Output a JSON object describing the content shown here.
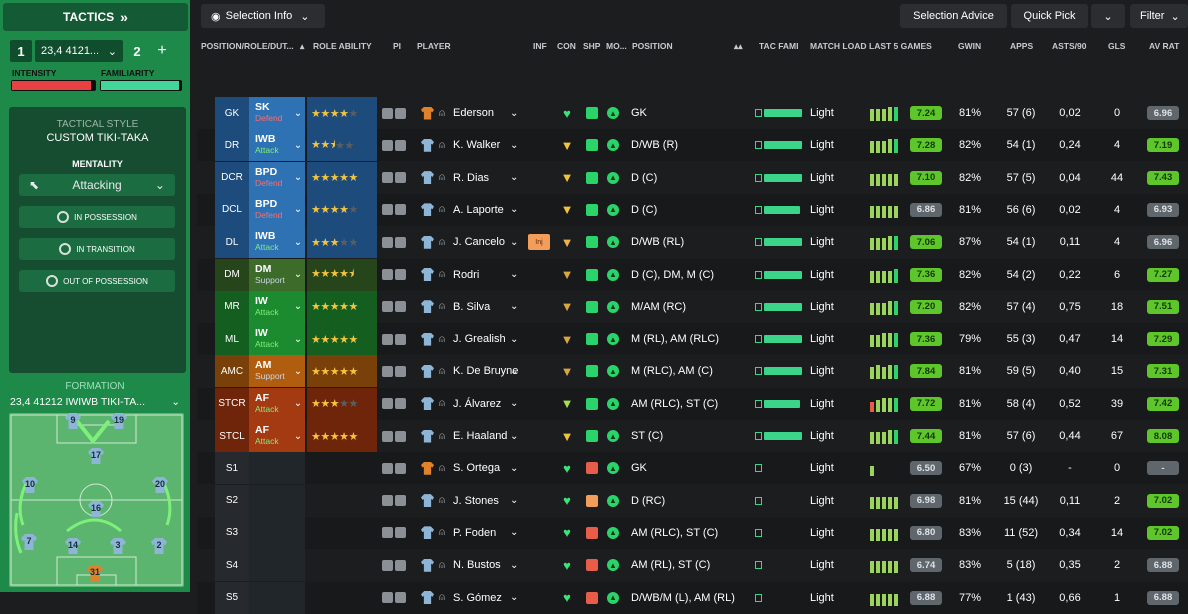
{
  "sidebar": {
    "header": "TACTICS",
    "tactic1_num": "1",
    "tactic1_name": "23,4 4121...",
    "tactic2_num": "2",
    "intensity_label": "INTENSITY",
    "intensity_value": 0.95,
    "familiarity_label": "FAMILIARITY",
    "familiarity_value": 0.97,
    "tactical_style_label": "TACTICAL STYLE",
    "tactical_style_value": "CUSTOM TIKI-TAKA",
    "mentality_label": "MENTALITY",
    "mentality_value": "Attacking",
    "in_possession": "IN POSSESSION",
    "in_transition": "IN TRANSITION",
    "out_of_possession": "OUT OF POSSESSION",
    "formation_label": "FORMATION",
    "formation_value": "23,4 41212 IWIWB TIKI-TA...",
    "pitch_numbers": [
      "9",
      "19",
      "17",
      "10",
      "20",
      "16",
      "7",
      "14",
      "3",
      "2",
      "31"
    ]
  },
  "topbar": {
    "selection_info": "Selection Info",
    "selection_advice": "Selection Advice",
    "quick_pick": "Quick Pick",
    "filter": "Filter"
  },
  "headers": {
    "position": "POSITION/ROLE/DUT...",
    "role_ability": "ROLE ABILITY",
    "pi": "PI",
    "player": "PLAYER",
    "inf": "INF",
    "con": "CON",
    "shp": "SHP",
    "mo": "MO...",
    "pos": "POSITION",
    "tac_fami": "TAC FAMI",
    "match_load": "MATCH LOAD",
    "last5": "LAST 5 GAMES",
    "gwin": "GWIN",
    "apps": "APPS",
    "asts": "ASTS/90",
    "gls": "GLS",
    "avrat": "AV RAT"
  },
  "colors": {
    "defend": "#2f72b4",
    "support": "#3d6b2a",
    "attack_green": "#1c8a2e",
    "attack_orange": "#b05d10",
    "attack_red": "#a43a12",
    "rating_green": "#5ec52a",
    "rating_grey": "#5f666c"
  },
  "rows": [
    {
      "slot": "GK",
      "role": "SK",
      "duty": "Defend",
      "stars": "★★★★",
      "empty": "★",
      "pname": "Ederson",
      "ppos": "GK",
      "inj": "",
      "load": "Light",
      "avr": "7.24",
      "gwin": "81%",
      "apps": "57 (6)",
      "asts": "0,02",
      "gls": "0",
      "avrat": "6.96"
    },
    {
      "slot": "DR",
      "role": "IWB",
      "duty": "Attack",
      "stars": "★★⯨",
      "empty": "★★",
      "pname": "K. Walker",
      "ppos": "D/WB (R)",
      "inj": "",
      "load": "Light",
      "avr": "7.28",
      "gwin": "82%",
      "apps": "54 (1)",
      "asts": "0,24",
      "gls": "4",
      "avrat": "7.19"
    },
    {
      "slot": "DCR",
      "role": "BPD",
      "duty": "Defend",
      "stars": "★★★★★",
      "empty": "",
      "pname": "R. Dias",
      "ppos": "D (C)",
      "inj": "",
      "load": "Light",
      "avr": "7.10",
      "gwin": "82%",
      "apps": "57 (5)",
      "asts": "0,04",
      "gls": "44",
      "avrat": "7.43"
    },
    {
      "slot": "DCL",
      "role": "BPD",
      "duty": "Defend",
      "stars": "★★★★",
      "empty": "★",
      "pname": "A. Laporte",
      "ppos": "D (C)",
      "inj": "",
      "load": "Light",
      "avr": "6.86",
      "gwin": "81%",
      "apps": "56 (6)",
      "asts": "0,02",
      "gls": "4",
      "avrat": "6.93"
    },
    {
      "slot": "DL",
      "role": "IWB",
      "duty": "Attack",
      "stars": "★★★",
      "empty": "★★",
      "pname": "J. Cancelo",
      "ppos": "D/WB (RL)",
      "inj": "Inj",
      "load": "Light",
      "avr": "7.06",
      "gwin": "87%",
      "apps": "54 (1)",
      "asts": "0,11",
      "gls": "4",
      "avrat": "6.96"
    },
    {
      "slot": "DM",
      "role": "DM",
      "duty": "Support",
      "stars": "★★★★⯨",
      "empty": "",
      "pname": "Rodri",
      "ppos": "D (C), DM, M (C)",
      "inj": "",
      "load": "Light",
      "avr": "7.36",
      "gwin": "82%",
      "apps": "54 (2)",
      "asts": "0,22",
      "gls": "6",
      "avrat": "7.27"
    },
    {
      "slot": "MR",
      "role": "IW",
      "duty": "Attack",
      "stars": "★★★★★",
      "empty": "",
      "pname": "B. Silva",
      "ppos": "M/AM (RC)",
      "inj": "",
      "load": "Light",
      "avr": "7.20",
      "gwin": "82%",
      "apps": "57 (4)",
      "asts": "0,75",
      "gls": "18",
      "avrat": "7.51"
    },
    {
      "slot": "ML",
      "role": "IW",
      "duty": "Attack",
      "stars": "★★★★★",
      "empty": "",
      "pname": "J. Grealish",
      "ppos": "M (RL), AM (RLC)",
      "inj": "",
      "load": "Light",
      "avr": "7.36",
      "gwin": "79%",
      "apps": "55 (3)",
      "asts": "0,47",
      "gls": "14",
      "avrat": "7.29"
    },
    {
      "slot": "AMC",
      "role": "AM",
      "duty": "Support",
      "stars": "★★★★★",
      "empty": "",
      "pname": "K. De Bruyne",
      "ppos": "M (RLC), AM (C)",
      "inj": "",
      "load": "Light",
      "avr": "7.84",
      "gwin": "81%",
      "apps": "59 (5)",
      "asts": "0,40",
      "gls": "15",
      "avrat": "7.31"
    },
    {
      "slot": "STCR",
      "role": "AF",
      "duty": "Attack",
      "stars": "★★★",
      "empty": "★★",
      "pname": "J. Álvarez",
      "ppos": "AM (RLC), ST (C)",
      "inj": "",
      "load": "Light",
      "avr": "7.72",
      "gwin": "81%",
      "apps": "58 (4)",
      "asts": "0,52",
      "gls": "39",
      "avrat": "7.42"
    },
    {
      "slot": "STCL",
      "role": "AF",
      "duty": "Attack",
      "stars": "★★★★★",
      "empty": "",
      "pname": "E. Haaland",
      "ppos": "ST (C)",
      "inj": "",
      "load": "Light",
      "avr": "7.44",
      "gwin": "81%",
      "apps": "57 (6)",
      "asts": "0,44",
      "gls": "67",
      "avrat": "8.08"
    },
    {
      "slot": "S1",
      "role": "",
      "duty": "",
      "stars": "",
      "empty": "",
      "pname": "S. Ortega",
      "ppos": "GK",
      "inj": "",
      "load": "Light",
      "avr": "6.50",
      "gwin": "67%",
      "apps": "0 (3)",
      "asts": "-",
      "gls": "0",
      "avrat": "-"
    },
    {
      "slot": "S2",
      "role": "",
      "duty": "",
      "stars": "",
      "empty": "",
      "pname": "J. Stones",
      "ppos": "D (RC)",
      "inj": "",
      "load": "Light",
      "avr": "6.98",
      "gwin": "81%",
      "apps": "15 (44)",
      "asts": "0,11",
      "gls": "2",
      "avrat": "7.02"
    },
    {
      "slot": "S3",
      "role": "",
      "duty": "",
      "stars": "",
      "empty": "",
      "pname": "P. Foden",
      "ppos": "AM (RLC), ST (C)",
      "inj": "",
      "load": "Light",
      "avr": "6.80",
      "gwin": "83%",
      "apps": "11 (52)",
      "asts": "0,34",
      "gls": "14",
      "avrat": "7.02"
    },
    {
      "slot": "S4",
      "role": "",
      "duty": "",
      "stars": "",
      "empty": "",
      "pname": "N. Bustos",
      "ppos": "AM (RL), ST (C)",
      "inj": "",
      "load": "Light",
      "avr": "6.74",
      "gwin": "83%",
      "apps": "5 (18)",
      "asts": "0,35",
      "gls": "2",
      "avrat": "6.88"
    },
    {
      "slot": "S5",
      "role": "",
      "duty": "",
      "stars": "",
      "empty": "",
      "pname": "S. Gómez",
      "ppos": "D/WB/M (L), AM (RL)",
      "inj": "",
      "load": "Light",
      "avr": "6.88",
      "gwin": "77%",
      "apps": "1 (43)",
      "asts": "0,66",
      "gls": "1",
      "avrat": "6.88"
    }
  ]
}
